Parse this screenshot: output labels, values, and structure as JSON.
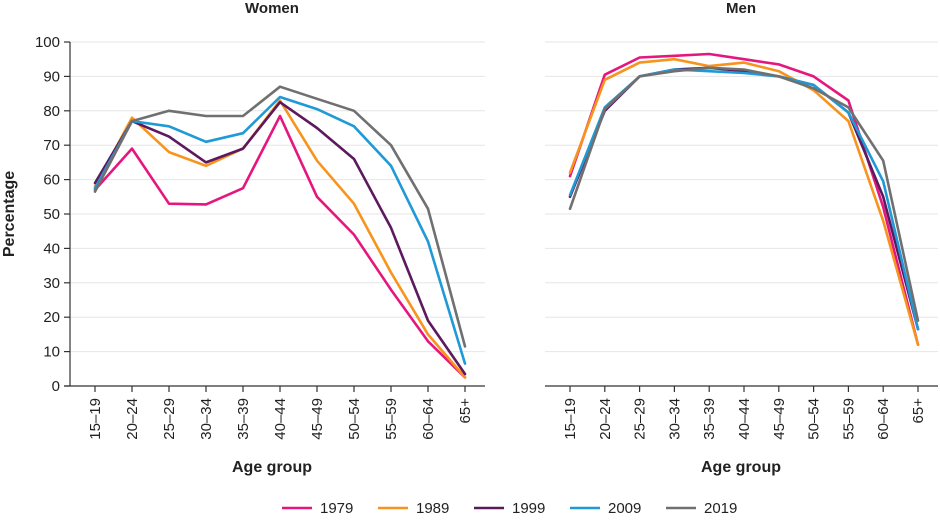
{
  "chart_data": [
    {
      "type": "line",
      "title": "Women",
      "xlabel": "Age group",
      "ylabel": "Percentage",
      "ylim": [
        0,
        100
      ],
      "yticks": [
        0,
        10,
        20,
        30,
        40,
        50,
        60,
        70,
        80,
        90,
        100
      ],
      "grid": true,
      "categories": [
        "15–19",
        "20–24",
        "25–29",
        "30–34",
        "35–39",
        "40–44",
        "45–49",
        "50–54",
        "55–59",
        "60–64",
        "65+"
      ],
      "series": [
        {
          "name": "1979",
          "color": "#e5177e",
          "values": [
            57,
            69,
            53,
            52.8,
            57.5,
            78.5,
            55,
            44,
            28,
            13,
            2.5
          ]
        },
        {
          "name": "1989",
          "color": "#f7941d",
          "values": [
            58,
            78,
            68,
            64,
            69,
            83,
            65.5,
            53,
            33,
            15,
            2.5
          ]
        },
        {
          "name": "1999",
          "color": "#5c1a5e",
          "values": [
            59,
            77,
            72.5,
            65,
            69,
            82.5,
            75,
            66,
            46,
            19,
            3.5
          ]
        },
        {
          "name": "2009",
          "color": "#1f9ad6",
          "values": [
            57.5,
            77,
            75.5,
            71,
            73.5,
            84,
            80.5,
            75.5,
            64,
            42,
            6.5
          ]
        },
        {
          "name": "2019",
          "color": "#707070",
          "values": [
            56.5,
            77,
            80,
            78.5,
            78.5,
            87,
            83.5,
            80,
            70,
            51.5,
            11.5
          ]
        }
      ]
    },
    {
      "type": "line",
      "title": "Men",
      "xlabel": "Age group",
      "ylabel": "",
      "ylim": [
        0,
        100
      ],
      "grid": true,
      "categories": [
        "15–19",
        "20–24",
        "25–29",
        "30–34",
        "35–39",
        "40–44",
        "45–49",
        "50–54",
        "55–59",
        "60–64",
        "65+"
      ],
      "series": [
        {
          "name": "1979",
          "color": "#e5177e",
          "values": [
            61,
            90.5,
            95.5,
            96,
            96.5,
            95,
            93.5,
            90,
            83,
            52,
            12
          ]
        },
        {
          "name": "1989",
          "color": "#f7941d",
          "values": [
            62,
            89,
            94,
            95,
            93,
            94,
            91.5,
            86,
            77,
            48,
            12
          ]
        },
        {
          "name": "1999",
          "color": "#5c1a5e",
          "values": [
            55,
            80,
            90,
            92,
            92.5,
            91.5,
            90,
            87.5,
            79.5,
            55,
            16.5
          ]
        },
        {
          "name": "2009",
          "color": "#1f9ad6",
          "values": [
            55.5,
            81,
            90,
            92,
            91.5,
            91,
            90,
            87.5,
            79.5,
            59.5,
            16.5
          ]
        },
        {
          "name": "2019",
          "color": "#707070",
          "values": [
            51.5,
            80.5,
            90,
            91.5,
            92.5,
            92,
            90,
            86.5,
            81,
            65.5,
            19
          ]
        }
      ]
    }
  ],
  "legend": {
    "placement": "bottom",
    "items": [
      {
        "label": "1979",
        "color": "#e5177e"
      },
      {
        "label": "1989",
        "color": "#f7941d"
      },
      {
        "label": "1999",
        "color": "#5c1a5e"
      },
      {
        "label": "2009",
        "color": "#1f9ad6"
      },
      {
        "label": "2019",
        "color": "#707070"
      }
    ]
  },
  "colors": {
    "grid": "#e6e6e6",
    "axis": "#333333",
    "background": "#ffffff"
  }
}
